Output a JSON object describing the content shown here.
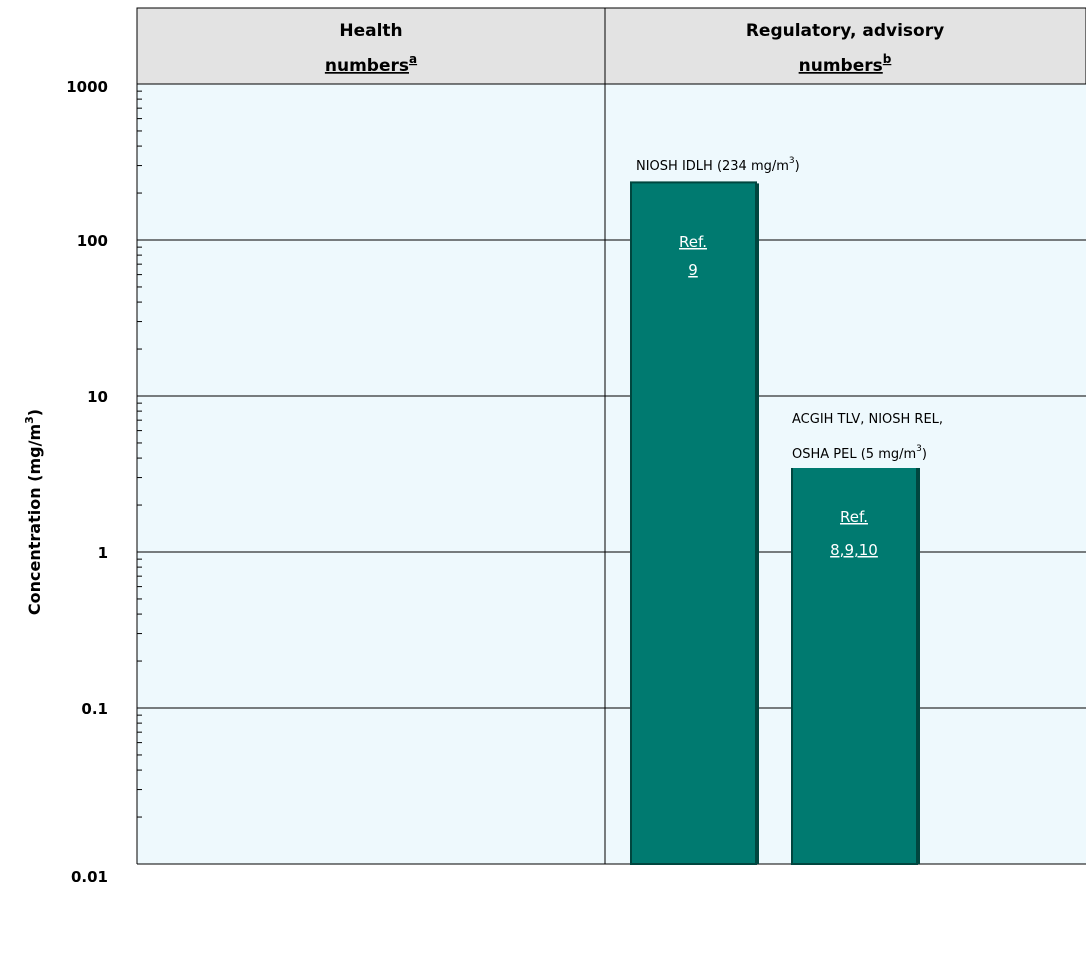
{
  "chart_data": {
    "type": "bar",
    "yscale": "log",
    "ylim": [
      0.01,
      1000
    ],
    "ylabel": "Concentration (mg/m",
    "ylabel_sup": "3",
    "ylabel_close": ")",
    "yticks": [
      "1000",
      "100",
      "10",
      "1",
      "0.1",
      "0.01"
    ],
    "yticks_values": [
      1000,
      100,
      10,
      1,
      0.1,
      0.01
    ],
    "grid": true,
    "colors": {
      "plot_bg": "#eef9fd",
      "header_bg": "#e3e3e3",
      "bar": "#007a70",
      "bar_edge": "#00463f"
    },
    "panels": [
      {
        "title_line1": "Health",
        "title_line2": "numbers",
        "title_sup": "a"
      },
      {
        "title_line1": "Regulatory, advisory",
        "title_line2": "numbers",
        "title_sup": "b"
      }
    ],
    "bars": [
      {
        "panel": 1,
        "value": 234,
        "label_text": "NIOSH IDLH (234 mg/m",
        "label_sup": "3",
        "label_close": ")",
        "ref_line1": "Ref.",
        "ref_line2": "9"
      },
      {
        "panel": 1,
        "value": 5,
        "label_line1": "ACGIH TLV, NIOSH REL,",
        "label_text": "OSHA PEL (5 mg/m",
        "label_sup": "3",
        "label_close": ")",
        "ref_line1": "Ref.",
        "ref_line2": "8,9,10"
      }
    ]
  }
}
